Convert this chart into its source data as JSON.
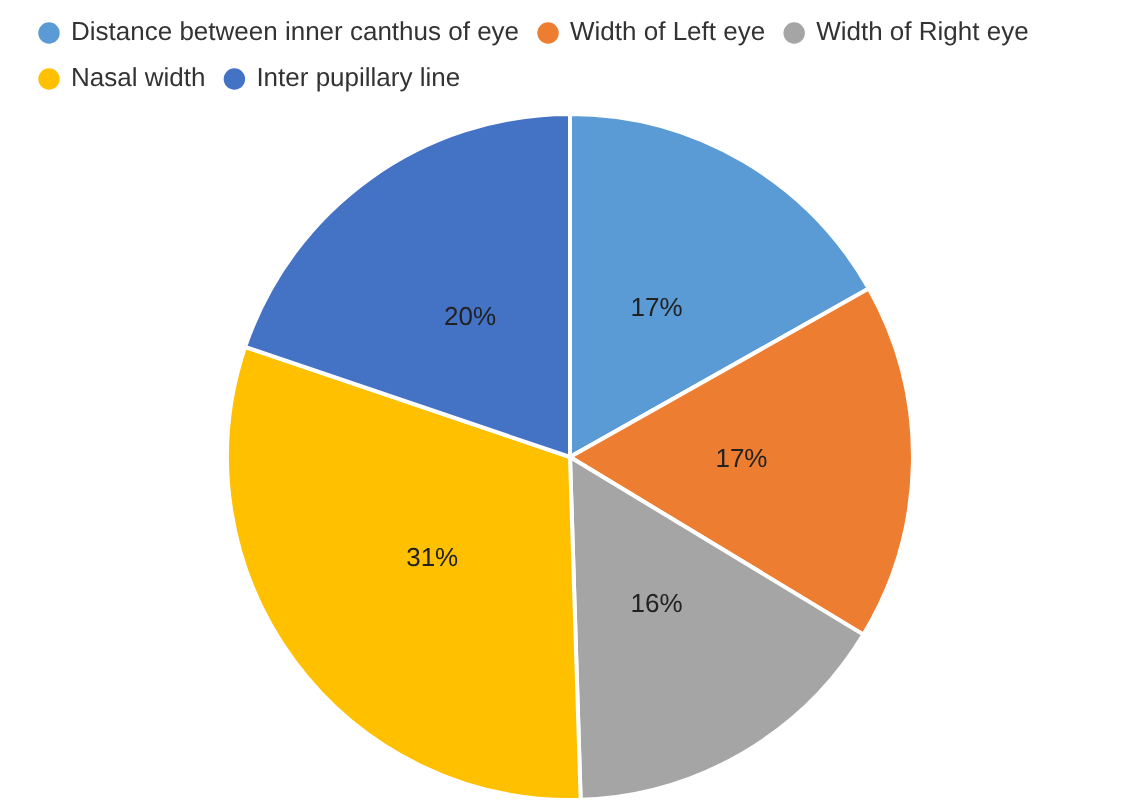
{
  "chart_data": {
    "type": "pie",
    "categories": [
      "Distance between inner canthus of eye",
      "Width of Left eye",
      "Width of Right eye",
      "Nasal width",
      "Inter pupillary line"
    ],
    "values": [
      17,
      17,
      16,
      31,
      20
    ],
    "colors": [
      "#5b9bd5",
      "#ed7d31",
      "#a5a5a5",
      "#ffc000",
      "#4472c4"
    ],
    "value_labels": [
      "17%",
      "17%",
      "16%",
      "31%",
      "20%"
    ],
    "legend": "top"
  }
}
